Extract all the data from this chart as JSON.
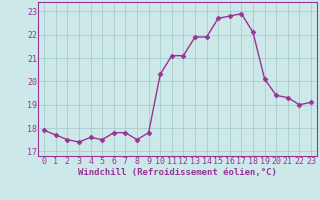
{
  "x": [
    0,
    1,
    2,
    3,
    4,
    5,
    6,
    7,
    8,
    9,
    10,
    11,
    12,
    13,
    14,
    15,
    16,
    17,
    18,
    19,
    20,
    21,
    22,
    23
  ],
  "y": [
    17.9,
    17.7,
    17.5,
    17.4,
    17.6,
    17.5,
    17.8,
    17.8,
    17.5,
    17.8,
    20.3,
    21.1,
    21.1,
    21.9,
    21.9,
    22.7,
    22.8,
    22.9,
    22.1,
    20.1,
    19.4,
    19.3,
    19.0,
    19.1
  ],
  "line_color": "#993399",
  "marker": "D",
  "marker_size": 2.5,
  "bg_color": "#cce8e8",
  "grid_color": "#b0d8d8",
  "xlabel": "Windchill (Refroidissement éolien,°C)",
  "ylabel_ticks": [
    17,
    18,
    19,
    20,
    21,
    22,
    23
  ],
  "xlabel_ticks": [
    0,
    1,
    2,
    3,
    4,
    5,
    6,
    7,
    8,
    9,
    10,
    11,
    12,
    13,
    14,
    15,
    16,
    17,
    18,
    19,
    20,
    21,
    22,
    23
  ],
  "xlim": [
    -0.5,
    23.5
  ],
  "ylim": [
    16.8,
    23.4
  ],
  "tick_color": "#993399",
  "label_color": "#993399",
  "label_fontsize": 6.5,
  "tick_fontsize": 6.0,
  "spine_color": "#993399"
}
